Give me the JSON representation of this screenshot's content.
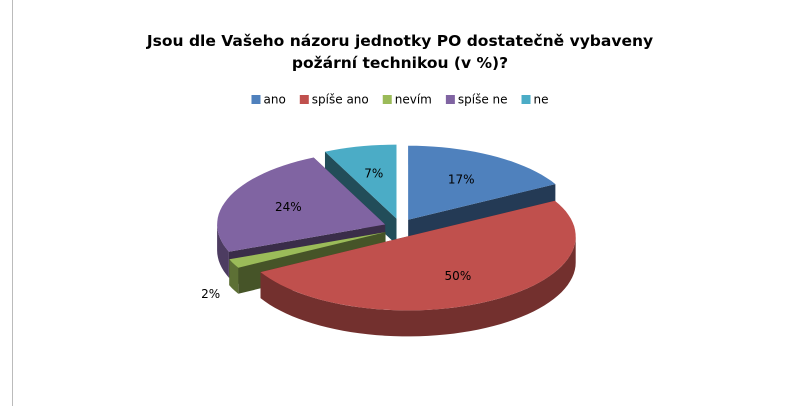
{
  "chart_data": {
    "type": "pie3d",
    "title": "Jsou dle Vašeho názoru jednotky PO dostatečně vybaveny požární technikou (v %)?",
    "categories": [
      "ano",
      "spíše ano",
      "nevím",
      "spíše ne",
      "ne"
    ],
    "values": [
      17,
      50,
      2,
      24,
      7
    ],
    "value_labels": [
      "17%",
      "50%",
      "2%",
      "24%",
      "7%"
    ],
    "colors": [
      "#4f81bd",
      "#c0504d",
      "#9bbb59",
      "#8064a2",
      "#4bacc6"
    ],
    "legend": "top"
  }
}
